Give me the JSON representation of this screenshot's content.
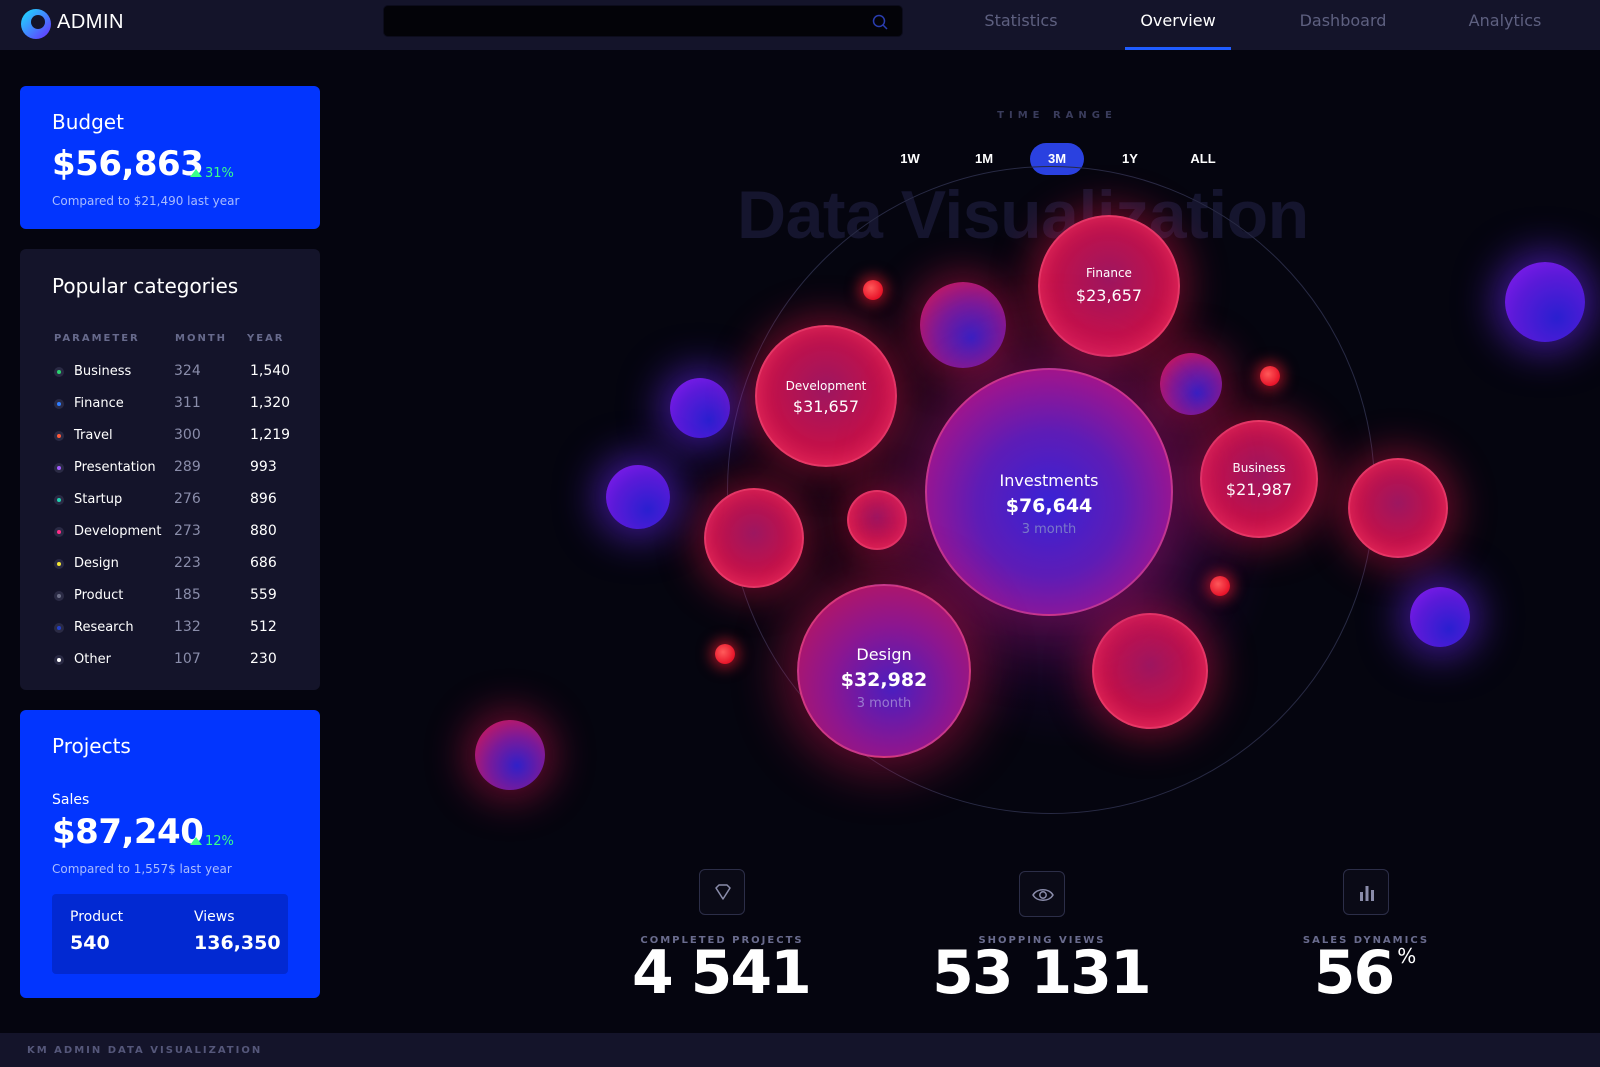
{
  "app": {
    "title": "ADMIN"
  },
  "search": {
    "placeholder": "",
    "value": ""
  },
  "nav": {
    "tabs": [
      {
        "label": "Statistics",
        "active": false
      },
      {
        "label": "Overview",
        "active": true
      },
      {
        "label": "Dashboard",
        "active": false
      },
      {
        "label": "Analytics",
        "active": false
      }
    ]
  },
  "budget": {
    "title": "Budget",
    "amount": "$56,863",
    "change": "31%",
    "compare": "Compared to $21,490 last year"
  },
  "categories": {
    "title": "Popular categories",
    "headers": {
      "parameter": "PARAMETER",
      "month": "MONTH",
      "year": "YEAR"
    },
    "rows": [
      {
        "name": "Business",
        "month": "324",
        "year": "1,540",
        "color": "#2bd36f"
      },
      {
        "name": "Finance",
        "month": "311",
        "year": "1,320",
        "color": "#2f7dff"
      },
      {
        "name": "Travel",
        "month": "300",
        "year": "1,219",
        "color": "#ff5a3a"
      },
      {
        "name": "Presentation",
        "month": "289",
        "year": "993",
        "color": "#a35cff"
      },
      {
        "name": "Startup",
        "month": "276",
        "year": "896",
        "color": "#22d0b0"
      },
      {
        "name": "Development",
        "month": "273",
        "year": "880",
        "color": "#ff2e88"
      },
      {
        "name": "Design",
        "month": "223",
        "year": "686",
        "color": "#f2e535"
      },
      {
        "name": "Product",
        "month": "185",
        "year": "559",
        "color": "#6d6f87"
      },
      {
        "name": "Research",
        "month": "132",
        "year": "512",
        "color": "#2440c8"
      },
      {
        "name": "Other",
        "month": "107",
        "year": "230",
        "color": "#ffffff"
      }
    ]
  },
  "projects": {
    "title": "Projects",
    "sales_label": "Sales",
    "amount": "$87,240",
    "change": "12%",
    "compare": "Compared to 1,557$ last year",
    "product_label": "Product",
    "product_value": "540",
    "views_label": "Views",
    "views_value": "136,350"
  },
  "time_range": {
    "label": "TIME RANGE",
    "options": [
      "1W",
      "1M",
      "3M",
      "1Y",
      "ALL"
    ],
    "selected": "3M"
  },
  "viz": {
    "background_title": "Data Visualization",
    "bubbles": {
      "investments": {
        "name": "Investments",
        "value": "$76,644",
        "period": "3 month"
      },
      "design": {
        "name": "Design",
        "value": "$32,982",
        "period": "3 month"
      },
      "development": {
        "name": "Development",
        "value": "$31,657"
      },
      "finance": {
        "name": "Finance",
        "value": "$23,657"
      },
      "business": {
        "name": "Business",
        "value": "$21,987"
      }
    }
  },
  "stats": [
    {
      "label": "COMPLETED PROJECTS",
      "value": "4 541",
      "icon": "diamond-icon"
    },
    {
      "label": "SHOPPING VIEWS",
      "value": "53 131",
      "icon": "eye-icon"
    },
    {
      "label": "SALES DYNAMICS",
      "value": "56",
      "unit": "%",
      "icon": "bar-chart-icon"
    }
  ],
  "footer": {
    "text": "KM ADMIN DATA VISUALIZATION"
  },
  "colors": {
    "accent": "#0235fe",
    "nav_active": "#1f5cff",
    "positive": "#39ff8a"
  }
}
